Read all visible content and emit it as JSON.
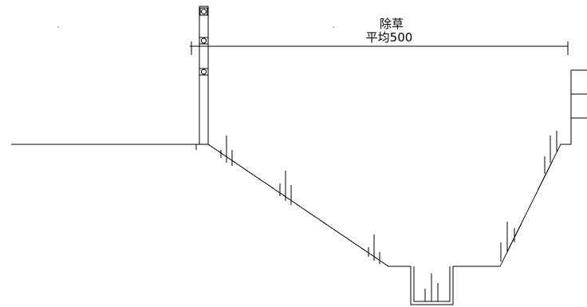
{
  "annotation": {
    "title": "除草",
    "dimension_text": "平均500"
  },
  "colors": {
    "line": "#000000",
    "background": "#ffffff"
  }
}
